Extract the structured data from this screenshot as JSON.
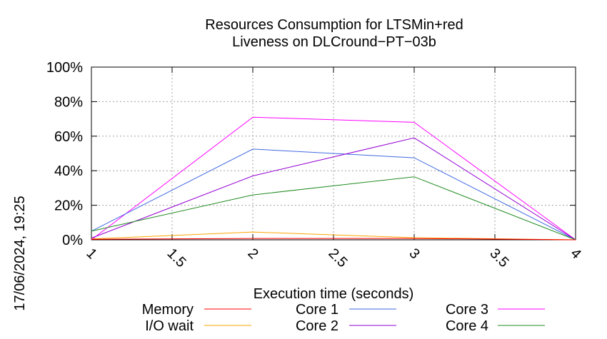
{
  "chart_data": {
    "type": "line",
    "title": "Resources Consumption for LTSMin+red",
    "subtitle": "Liveness on DLCround−PT−03b",
    "xlabel": "Execution time (seconds)",
    "ylabel": "",
    "side_label": "17/06/2024, 19:25",
    "xlim": [
      1,
      4
    ],
    "ylim": [
      0,
      100
    ],
    "x_ticks": [
      1,
      1.5,
      2,
      2.5,
      3,
      3.5,
      4
    ],
    "x_tick_labels": [
      "1",
      "1.5",
      "2",
      "2.5",
      "3",
      "3.5",
      "4"
    ],
    "y_ticks": [
      0,
      20,
      40,
      60,
      80,
      100
    ],
    "y_tick_labels": [
      "0%",
      "20%",
      "40%",
      "60%",
      "80%",
      "100%"
    ],
    "grid": true,
    "legend_position": "bottom",
    "x": [
      1,
      2,
      3,
      4
    ],
    "series": [
      {
        "name": "Memory",
        "color": "#ff0000",
        "values": [
          0.3,
          0.8,
          0.8,
          0
        ]
      },
      {
        "name": "I/O wait",
        "color": "#ffa500",
        "values": [
          0.5,
          4.5,
          1.2,
          0
        ]
      },
      {
        "name": "Core 1",
        "color": "#4169e1",
        "values": [
          5,
          52.5,
          47.5,
          0
        ]
      },
      {
        "name": "Core 2",
        "color": "#9400d3",
        "values": [
          1,
          37,
          59,
          0
        ]
      },
      {
        "name": "Core 3",
        "color": "#ff00ff",
        "values": [
          0,
          71,
          68,
          0
        ]
      },
      {
        "name": "Core 4",
        "color": "#228b22",
        "values": [
          5,
          26,
          36.5,
          0
        ]
      }
    ]
  }
}
